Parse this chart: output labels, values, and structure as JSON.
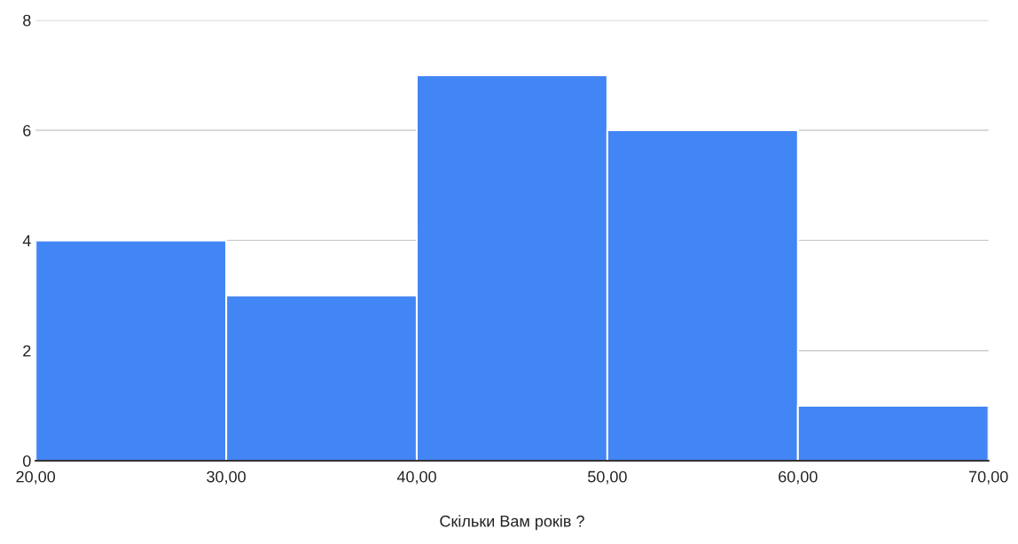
{
  "chart_data": {
    "type": "histogram",
    "xlabel": "Скільки Вам років ?",
    "bins": [
      20,
      30,
      40,
      50,
      60,
      70
    ],
    "values": [
      4,
      3,
      7,
      6,
      1
    ],
    "color": "#4285f4",
    "xlim": [
      20,
      70
    ],
    "xticks": [
      {
        "value": 20,
        "label": "20,00"
      },
      {
        "value": 30,
        "label": "30,00"
      },
      {
        "value": 40,
        "label": "40,00"
      },
      {
        "value": 50,
        "label": "50,00"
      },
      {
        "value": 60,
        "label": "60,00"
      },
      {
        "value": 70,
        "label": "70,00"
      }
    ],
    "ylim": [
      0,
      8
    ],
    "yticks": [
      0,
      2,
      4,
      6,
      8
    ],
    "grid": "y"
  }
}
